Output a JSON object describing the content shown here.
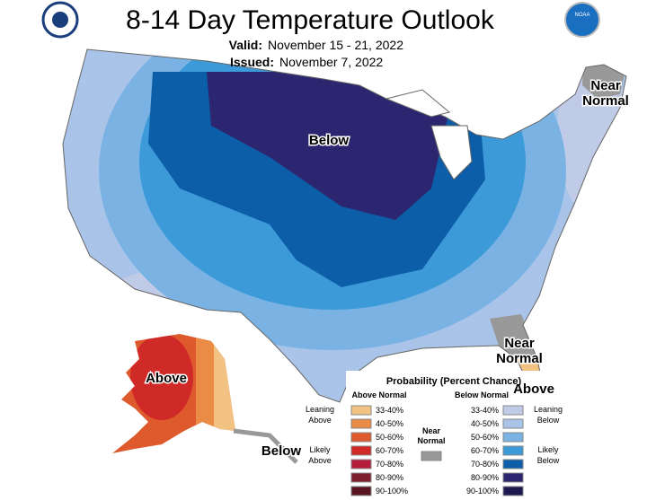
{
  "header": {
    "title": "8-14 Day Temperature Outlook",
    "valid": {
      "label": "Valid:",
      "text": "November 15 - 21, 2022"
    },
    "issued": {
      "label": "Issued:",
      "text": "November 7, 2022"
    },
    "logo_text": "NOAA"
  },
  "map_labels": [
    {
      "lines": [
        "Below"
      ]
    },
    {
      "lines": [
        "Near",
        "Normal"
      ]
    },
    {
      "lines": [
        "Near",
        "Normal"
      ]
    },
    {
      "lines": [
        "Above"
      ]
    },
    {
      "lines": [
        "Above"
      ]
    },
    {
      "lines": [
        "Below"
      ]
    }
  ],
  "legend": {
    "title": "Probability (Percent Chance)",
    "above_header": "Above Normal",
    "below_header": "Below Normal",
    "near": {
      "lines": [
        "Near",
        "Normal"
      ],
      "color": "#999999"
    },
    "above": [
      {
        "range": "33-40%",
        "color": "#f2c282"
      },
      {
        "range": "40-50%",
        "color": "#ea8c46"
      },
      {
        "range": "50-60%",
        "color": "#de5a2c"
      },
      {
        "range": "60-70%",
        "color": "#cf2a27"
      },
      {
        "range": "70-80%",
        "color": "#b81c3b"
      },
      {
        "range": "80-90%",
        "color": "#7f2030"
      },
      {
        "range": "90-100%",
        "color": "#5a1420"
      }
    ],
    "below": [
      {
        "range": "33-40%",
        "color": "#c0cbe8"
      },
      {
        "range": "40-50%",
        "color": "#a9c4e8"
      },
      {
        "range": "50-60%",
        "color": "#7ab2e4"
      },
      {
        "range": "60-70%",
        "color": "#3d9ad9"
      },
      {
        "range": "70-80%",
        "color": "#0d5ea8"
      },
      {
        "range": "80-90%",
        "color": "#2c2670"
      },
      {
        "range": "90-100%",
        "color": "#1e1850"
      }
    ],
    "groups": [
      {
        "lines": [
          "Leaning",
          "Above"
        ]
      },
      {
        "lines": [
          "Likely",
          "Above"
        ]
      },
      {
        "lines": [
          "Leaning",
          "Below"
        ]
      },
      {
        "lines": [
          "Likely",
          "Below"
        ]
      }
    ]
  }
}
